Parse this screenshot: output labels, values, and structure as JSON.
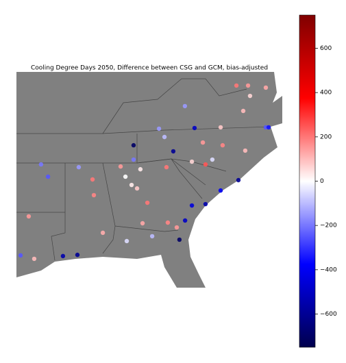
{
  "chart_data": {
    "type": "scatter",
    "title": "Cooling Degree Days 2050, Difference between CSG and GCM, bias-adjusted",
    "xlim": [
      -91,
      -75
    ],
    "ylim": [
      27,
      39.5
    ],
    "x": [
      -77.06,
      -75.99,
      -77.35,
      -75.99,
      -75.82,
      -79.78,
      -78.59,
      -80.44,
      -81.97,
      -81.56,
      -80.28,
      -82.42,
      -83.95,
      -84.07,
      -83.74,
      -86.34,
      -87.25,
      -89.1,
      -90.26,
      -89.52,
      -79.62,
      -80.44,
      -80.85,
      -78.71,
      -77.64,
      -81.89,
      -83.41,
      -82.83,
      -81.19,
      -84.36,
      -89.93,
      -90.75,
      -88.2,
      -87.33,
      -85.8,
      -83.95,
      -83.12,
      -80.86,
      -78.71,
      -77.23,
      -84.44,
      -83.54,
      -77.76,
      -76.94,
      -79.21,
      -81.35,
      -84.73,
      -86.42,
      -82.09,
      -79.62
    ],
    "y": [
      38.71,
      38.59,
      37.24,
      36.29,
      36.29,
      35.41,
      35.25,
      34.3,
      33.98,
      34.9,
      36.25,
      36.21,
      34.42,
      32.95,
      32.75,
      32.36,
      33.98,
      33.43,
      31.13,
      34.14,
      31.84,
      31.76,
      30.89,
      32.63,
      33.23,
      30.77,
      30.73,
      29.98,
      29.78,
      29.7,
      28.67,
      28.87,
      28.83,
      28.9,
      30.18,
      35.25,
      31.92,
      37.52,
      36.29,
      34.94,
      33.43,
      33.86,
      38.71,
      38.11,
      34.42,
      30.49,
      34.02,
      33.27,
      35.73,
      34.14
    ],
    "values": [
      150,
      130,
      100,
      -250,
      -350,
      150,
      180,
      60,
      200,
      -600,
      -500,
      -150,
      -200,
      30,
      80,
      180,
      -150,
      -250,
      150,
      -200,
      -550,
      -450,
      -500,
      -400,
      -600,
      180,
      130,
      -100,
      -700,
      -50,
      100,
      -250,
      -550,
      -600,
      120,
      -700,
      200,
      -150,
      80,
      100,
      0,
      30,
      200,
      60,
      -50,
      150,
      150,
      200,
      -100,
      250
    ],
    "colormap": [
      "#00004d",
      "#0000ff",
      "#ffffff",
      "#ff0000",
      "#800000"
    ],
    "clim": [
      -750,
      750
    ],
    "cticks": [
      {
        "value": -600,
        "label": "−600"
      },
      {
        "value": -400,
        "label": "−400"
      },
      {
        "value": -200,
        "label": "−200"
      },
      0,
      200,
      400,
      600
    ]
  }
}
